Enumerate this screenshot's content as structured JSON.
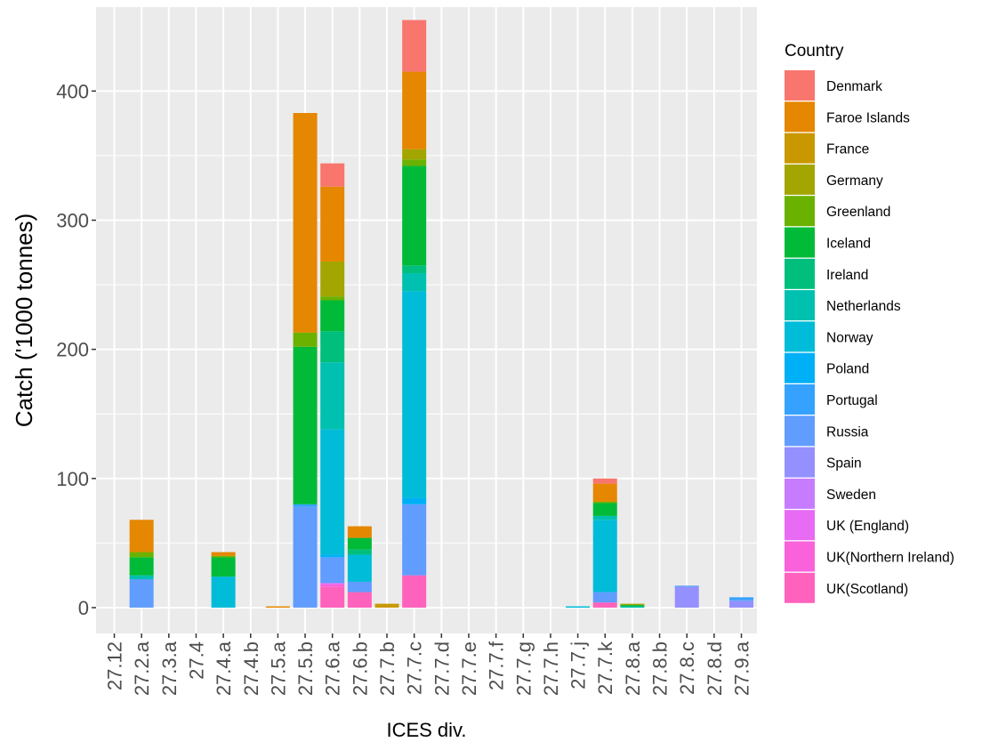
{
  "chart_data": {
    "type": "bar",
    "stacked": true,
    "xlabel": "ICES div.",
    "ylabel": "Catch ('1000 tonnes)",
    "ylim": [
      -20,
      465
    ],
    "yticks": [
      0,
      100,
      200,
      300,
      400
    ],
    "grid": true,
    "legend": {
      "title": "Country",
      "position": "right"
    },
    "categories": [
      "27.12",
      "27.2.a",
      "27.3.a",
      "27.4",
      "27.4.a",
      "27.4.b",
      "27.5.a",
      "27.5.b",
      "27.6.a",
      "27.6.b",
      "27.7.b",
      "27.7.c",
      "27.7.d",
      "27.7.e",
      "27.7.f",
      "27.7.g",
      "27.7.h",
      "27.7.j",
      "27.7.k",
      "27.8.a",
      "27.8.b",
      "27.8.c",
      "27.8.d",
      "27.9.a"
    ],
    "series": [
      {
        "name": "Denmark",
        "color": "#F8766D",
        "values": [
          0,
          0,
          0,
          0,
          0,
          0,
          0,
          0,
          18,
          0,
          0,
          40,
          0,
          0,
          0,
          0,
          0,
          0,
          4,
          0,
          0,
          0,
          0,
          0
        ]
      },
      {
        "name": "Faroe Islands",
        "color": "#E58700",
        "values": [
          0,
          25,
          0,
          0,
          3,
          0,
          1,
          170,
          58,
          9,
          0,
          60,
          0,
          0,
          0,
          0,
          0,
          0,
          14,
          0,
          0,
          0,
          0,
          0
        ]
      },
      {
        "name": "France",
        "color": "#C99800",
        "values": [
          0,
          0,
          0,
          0,
          0,
          0,
          0,
          0,
          0,
          0,
          3,
          0,
          0,
          0,
          0,
          0,
          0,
          0,
          0,
          0,
          0,
          0,
          0,
          0
        ]
      },
      {
        "name": "Germany",
        "color": "#A3A500",
        "values": [
          0,
          0,
          0,
          0,
          0,
          0,
          0,
          0,
          27,
          0,
          0,
          8,
          0,
          0,
          0,
          0,
          0,
          0,
          0,
          1,
          0,
          0,
          0,
          0
        ]
      },
      {
        "name": "Greenland",
        "color": "#6BB100",
        "values": [
          0,
          4,
          0,
          0,
          1,
          0,
          0,
          11,
          3,
          0,
          0,
          5,
          0,
          0,
          0,
          0,
          0,
          0,
          1,
          0,
          0,
          0,
          0,
          0
        ]
      },
      {
        "name": "Iceland",
        "color": "#00BA38",
        "values": [
          0,
          14,
          0,
          0,
          15,
          0,
          0,
          122,
          24,
          9,
          0,
          77,
          0,
          0,
          0,
          0,
          0,
          0,
          10,
          1,
          0,
          0,
          0,
          0
        ]
      },
      {
        "name": "Ireland",
        "color": "#00BF7D",
        "values": [
          0,
          0,
          0,
          0,
          0,
          0,
          0,
          0,
          24,
          4,
          0,
          6,
          0,
          0,
          0,
          0,
          0,
          0,
          0,
          0,
          0,
          0,
          0,
          0
        ]
      },
      {
        "name": "Netherlands",
        "color": "#00C0AF",
        "values": [
          0,
          3,
          0,
          0,
          0,
          0,
          0,
          0,
          52,
          0,
          0,
          14,
          0,
          0,
          0,
          0,
          0,
          0,
          3,
          1,
          0,
          0,
          0,
          0
        ]
      },
      {
        "name": "Norway",
        "color": "#00BCD8",
        "values": [
          0,
          0,
          0,
          0,
          24,
          0,
          0,
          0,
          97,
          21,
          0,
          160,
          0,
          0,
          0,
          0,
          0,
          1,
          56,
          0,
          0,
          0,
          0,
          0
        ]
      },
      {
        "name": "Poland",
        "color": "#00B0F6",
        "values": [
          0,
          0,
          0,
          0,
          0,
          0,
          0,
          0,
          2,
          0,
          0,
          5,
          0,
          0,
          0,
          0,
          0,
          0,
          0,
          0,
          0,
          0,
          0,
          0
        ]
      },
      {
        "name": "Portugal",
        "color": "#35A2FF",
        "values": [
          0,
          0,
          0,
          0,
          0,
          0,
          0,
          2,
          0,
          0,
          0,
          0,
          0,
          0,
          0,
          0,
          0,
          0,
          0,
          0,
          0,
          0,
          0,
          2
        ]
      },
      {
        "name": "Russia",
        "color": "#619CFF",
        "values": [
          0,
          22,
          0,
          0,
          0,
          0,
          0,
          78,
          20,
          8,
          0,
          55,
          0,
          0,
          0,
          0,
          0,
          0,
          8,
          0,
          0,
          1,
          0,
          1
        ]
      },
      {
        "name": "Spain",
        "color": "#9590FF",
        "values": [
          0,
          0,
          0,
          0,
          0,
          0,
          0,
          0,
          0,
          0,
          0,
          0,
          0,
          0,
          0,
          0,
          0,
          0,
          0,
          0,
          0,
          16,
          0,
          5
        ]
      },
      {
        "name": "Sweden",
        "color": "#C77CFF",
        "values": [
          0,
          0,
          0,
          0,
          0,
          0,
          0,
          0,
          0,
          0,
          0,
          0,
          0,
          0,
          0,
          0,
          0,
          0,
          0,
          0,
          0,
          0,
          0,
          0
        ]
      },
      {
        "name": "UK (England)",
        "color": "#E76BF3",
        "values": [
          0,
          0,
          0,
          0,
          0,
          0,
          0,
          0,
          1,
          0,
          0,
          0,
          0,
          0,
          0,
          0,
          0,
          0,
          0,
          0,
          0,
          0,
          0,
          0
        ]
      },
      {
        "name": "UK(Northern Ireland)",
        "color": "#FA62DB",
        "values": [
          0,
          0,
          0,
          0,
          0,
          0,
          0,
          0,
          2,
          0,
          0,
          0,
          0,
          0,
          0,
          0,
          0,
          0,
          0,
          0,
          0,
          0,
          0,
          0
        ]
      },
      {
        "name": "UK(Scotland)",
        "color": "#FF62BC",
        "values": [
          0,
          0,
          0,
          0,
          0,
          0,
          0,
          0,
          16,
          12,
          0,
          25,
          0,
          0,
          0,
          0,
          0,
          0,
          4,
          0,
          0,
          0,
          0,
          0
        ]
      }
    ]
  }
}
